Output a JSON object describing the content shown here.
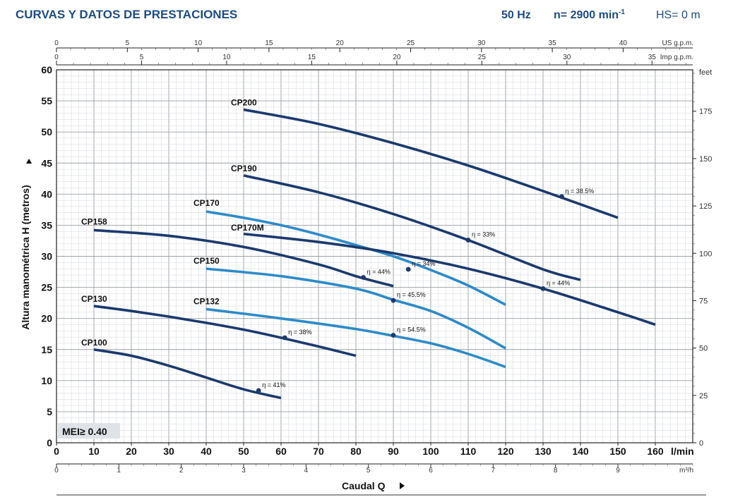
{
  "header": {
    "title": "CURVAS Y DATOS DE PRESTACIONES",
    "freq": "50 Hz",
    "speed": "n= 2900 min",
    "speed_exp": "-1",
    "hs": "HS= 0 m"
  },
  "mei": "MEI≥ 0.40",
  "chart_data": {
    "type": "line",
    "xlabel": "Caudal Q",
    "ylabel": "Altura manométrica H (metros)",
    "x_unit": "l/min",
    "xlim": [
      0,
      170
    ],
    "ylim": [
      0,
      60
    ],
    "grid": true,
    "x_ticks": [
      0,
      10,
      20,
      30,
      40,
      50,
      60,
      70,
      80,
      90,
      100,
      110,
      120,
      130,
      140,
      150,
      160
    ],
    "y_ticks": [
      0,
      5,
      10,
      15,
      20,
      25,
      30,
      35,
      40,
      45,
      50,
      55,
      60
    ],
    "secondary_axes": {
      "us_gpm": {
        "label": "US g.p.m.",
        "ticks": [
          0,
          5,
          10,
          15,
          20,
          25,
          30,
          35,
          40
        ]
      },
      "imp_gpm": {
        "label": "Imp g.p.m.",
        "ticks": [
          0,
          5,
          10,
          15,
          20,
          25,
          30,
          35
        ]
      },
      "m3h": {
        "label": "m³/h",
        "ticks": [
          0,
          1,
          2,
          3,
          4,
          5,
          6,
          7,
          8,
          9
        ]
      },
      "feet": {
        "label": "feet",
        "ticks": [
          0,
          25,
          50,
          75,
          100,
          125,
          150,
          175
        ]
      }
    },
    "series": [
      {
        "name": "CP100",
        "color": "#1b3a6e",
        "x": [
          10,
          20,
          30,
          40,
          50,
          60
        ],
        "y": [
          15,
          14,
          12.4,
          10.5,
          8.6,
          7.2
        ],
        "eta": "η = 41%",
        "eta_x": 54,
        "eta_y": 8.4
      },
      {
        "name": "CP130",
        "color": "#1b3a6e",
        "x": [
          10,
          20,
          30,
          40,
          50,
          60,
          70,
          80
        ],
        "y": [
          22,
          21.2,
          20.3,
          19.3,
          18.2,
          16.9,
          15.5,
          14
        ],
        "eta": "η = 38%",
        "eta_x": 61,
        "eta_y": 16.9
      },
      {
        "name": "CP132",
        "color": "#2e8bc9",
        "x": [
          40,
          60,
          80,
          90,
          100,
          110,
          120
        ],
        "y": [
          21.5,
          20,
          18.3,
          17.2,
          16,
          14.3,
          12.2
        ],
        "eta": "η = 54.5%",
        "eta_x": 90,
        "eta_y": 17.3
      },
      {
        "name": "CP150",
        "color": "#2e8bc9",
        "x": [
          40,
          60,
          80,
          90,
          100,
          110,
          120
        ],
        "y": [
          28,
          26.8,
          24.8,
          23,
          21.2,
          18.5,
          15.2
        ],
        "eta": "η = 45.5%",
        "eta_x": 90,
        "eta_y": 22.9
      },
      {
        "name": "CP158",
        "color": "#1b3a6e",
        "x": [
          10,
          30,
          50,
          70,
          80,
          90
        ],
        "y": [
          34.2,
          33.3,
          31.5,
          28.7,
          26.8,
          25.2
        ],
        "eta": "η = 44%",
        "eta_x": 82,
        "eta_y": 26.6
      },
      {
        "name": "CP170",
        "color": "#2e8bc9",
        "x": [
          40,
          50,
          60,
          70,
          80,
          90,
          100,
          110,
          120
        ],
        "y": [
          37.2,
          36.2,
          35,
          33.5,
          31.8,
          30,
          27.8,
          25.3,
          22.2
        ],
        "eta": "η = 34%",
        "eta_x": 94,
        "eta_y": 27.9
      },
      {
        "name": "CP170M",
        "color": "#1b3a6e",
        "x": [
          50,
          70,
          90,
          110,
          130,
          150,
          160
        ],
        "y": [
          33.6,
          32.3,
          30.5,
          28,
          24.8,
          21,
          19
        ],
        "eta": "η = 44%",
        "eta_x": 130,
        "eta_y": 24.8
      },
      {
        "name": "CP190",
        "color": "#1b3a6e",
        "x": [
          50,
          70,
          90,
          110,
          130,
          140
        ],
        "y": [
          43,
          40.3,
          36.8,
          32.6,
          27.9,
          26.2
        ],
        "eta": "η = 33%",
        "eta_x": 110,
        "eta_y": 32.6
      },
      {
        "name": "CP200",
        "color": "#1b3a6e",
        "x": [
          50,
          70,
          90,
          110,
          130,
          150
        ],
        "y": [
          53.6,
          51.3,
          48.2,
          44.6,
          40.5,
          36.2
        ],
        "eta": "η = 38.5%",
        "eta_x": 135,
        "eta_y": 39.6
      }
    ]
  }
}
